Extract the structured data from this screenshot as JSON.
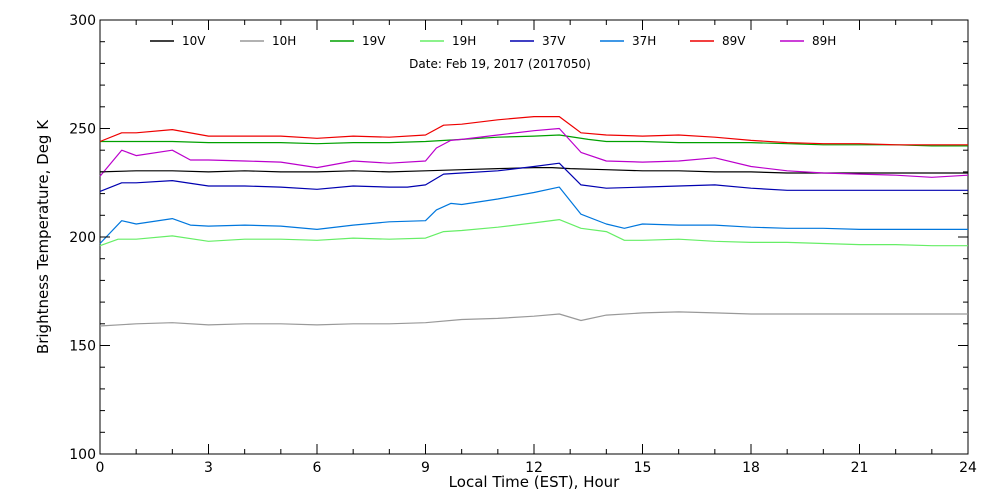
{
  "chart_data": {
    "type": "line",
    "subtitle": "Date: Feb 19, 2017 (2017050)",
    "xlabel": "Local Time (EST), Hour",
    "ylabel": "Brightness Temperature, Deg K",
    "xlim": [
      0,
      24
    ],
    "ylim": [
      100,
      300
    ],
    "xticks": [
      0,
      3,
      6,
      9,
      12,
      15,
      18,
      21,
      24
    ],
    "yticks": [
      100,
      150,
      200,
      250,
      300
    ],
    "grid": false,
    "legend_position": "top",
    "series": [
      {
        "name": "10V",
        "color": "#000000",
        "x": [
          0,
          1,
          2,
          3,
          4,
          5,
          6,
          7,
          8,
          9,
          10,
          11,
          12,
          12.5,
          13,
          14,
          15,
          16,
          17,
          18,
          19,
          20,
          21,
          22,
          23,
          24
        ],
        "y": [
          230,
          230.5,
          230.5,
          230,
          230.5,
          230,
          230,
          230.5,
          230,
          230.5,
          231,
          231.5,
          232,
          232,
          231.5,
          231,
          230.5,
          230.5,
          230,
          230,
          229.5,
          229.5,
          229.5,
          229.5,
          229.5,
          229.5
        ]
      },
      {
        "name": "10H",
        "color": "#999999",
        "x": [
          0,
          1,
          2,
          3,
          4,
          5,
          6,
          7,
          8,
          9,
          10,
          11,
          12,
          12.7,
          13.3,
          14,
          15,
          16,
          17,
          18,
          19,
          20,
          21,
          22,
          23,
          24
        ],
        "y": [
          159,
          160,
          160.5,
          159.5,
          160,
          160,
          159.5,
          160,
          160,
          160.5,
          162,
          162.5,
          163.5,
          164.5,
          161.5,
          164,
          165,
          165.5,
          165,
          164.5,
          164.5,
          164.5,
          164.5,
          164.5,
          164.5,
          164.5
        ]
      },
      {
        "name": "19V",
        "color": "#00a000",
        "x": [
          0,
          1,
          2,
          3,
          4,
          5,
          6,
          7,
          8,
          9,
          10,
          11,
          12,
          12.7,
          13.5,
          14,
          15,
          16,
          17,
          18,
          19,
          20,
          21,
          22,
          23,
          24
        ],
        "y": [
          244,
          244,
          244,
          243.5,
          243.5,
          243.5,
          243,
          243.5,
          243.5,
          244,
          245,
          246,
          246.5,
          247,
          245,
          244,
          244,
          243.5,
          243.5,
          243.5,
          243,
          242.5,
          242.5,
          242.5,
          242,
          242
        ]
      },
      {
        "name": "19H",
        "color": "#66ee66",
        "x": [
          0,
          0.5,
          1,
          2,
          3,
          4,
          5,
          6,
          7,
          8,
          9,
          9.5,
          10,
          11,
          12,
          12.7,
          13.3,
          14,
          14.5,
          15,
          16,
          17,
          18,
          19,
          20,
          21,
          22,
          23,
          24
        ],
        "y": [
          196,
          199,
          199,
          200.5,
          198,
          199,
          199,
          198.5,
          199.5,
          199,
          199.5,
          202.5,
          203,
          204.5,
          206.5,
          208,
          204,
          202.5,
          198.5,
          198.5,
          199,
          198,
          197.5,
          197.5,
          197,
          196.5,
          196.5,
          196,
          196
        ]
      },
      {
        "name": "37V",
        "color": "#0000b0",
        "x": [
          0,
          0.6,
          1,
          2,
          3,
          4,
          5,
          6,
          7,
          8,
          8.5,
          9,
          9.5,
          10,
          11,
          12,
          12.7,
          13.3,
          14,
          15,
          16,
          17,
          18,
          19,
          20,
          21,
          22,
          23,
          24
        ],
        "y": [
          221,
          225,
          225,
          226,
          223.5,
          223.5,
          223,
          222,
          223.5,
          223,
          223,
          224,
          229,
          229.5,
          230.5,
          232.5,
          234,
          224,
          222.5,
          223,
          223.5,
          224,
          222.5,
          221.5,
          221.5,
          221.5,
          221.5,
          221.5,
          221.5
        ]
      },
      {
        "name": "37H",
        "color": "#0077dd",
        "x": [
          0,
          0.6,
          1,
          2,
          2.5,
          3,
          4,
          5,
          6,
          7,
          8,
          9,
          9.3,
          9.7,
          10,
          11,
          12,
          12.7,
          13.3,
          14,
          14.5,
          15,
          16,
          17,
          18,
          19,
          20,
          21,
          22,
          23,
          24
        ],
        "y": [
          197,
          207.5,
          206,
          208.5,
          205.5,
          205,
          205.5,
          205,
          203.5,
          205.5,
          207,
          207.5,
          212.5,
          215.5,
          215,
          217.5,
          220.5,
          223,
          210.5,
          206,
          204,
          206,
          205.5,
          205.5,
          204.5,
          204,
          204,
          203.5,
          203.5,
          203.5,
          203.5
        ]
      },
      {
        "name": "89V",
        "color": "#ee0000",
        "x": [
          0,
          0.6,
          1,
          2,
          3,
          4,
          5,
          6,
          7,
          8,
          9,
          9.5,
          10,
          11,
          12,
          12.7,
          13.3,
          14,
          15,
          16,
          17,
          18,
          19,
          20,
          21,
          22,
          23,
          24
        ],
        "y": [
          244,
          248,
          248,
          249.5,
          246.5,
          246.5,
          246.5,
          245.5,
          246.5,
          246,
          247,
          251.5,
          252,
          254,
          255.5,
          255.5,
          248,
          247,
          246.5,
          247,
          246,
          244.5,
          243.5,
          243,
          243,
          242.5,
          242.5,
          242.5
        ]
      },
      {
        "name": "89H",
        "color": "#bb00cc",
        "x": [
          0,
          0.6,
          1,
          2,
          2.5,
          3,
          4,
          5,
          6,
          7,
          8,
          9,
          9.3,
          9.7,
          10,
          11,
          12,
          12.7,
          13.3,
          14,
          15,
          16,
          17,
          18,
          19,
          20,
          21,
          22,
          23,
          24
        ],
        "y": [
          228,
          240,
          237.5,
          240,
          235.5,
          235.5,
          235,
          234.5,
          232,
          235,
          234,
          235,
          241,
          244.5,
          245,
          247,
          249,
          250,
          239,
          235,
          234.5,
          235,
          236.5,
          232.5,
          230.5,
          229.5,
          229,
          228.5,
          227.5,
          228.5
        ]
      }
    ]
  }
}
